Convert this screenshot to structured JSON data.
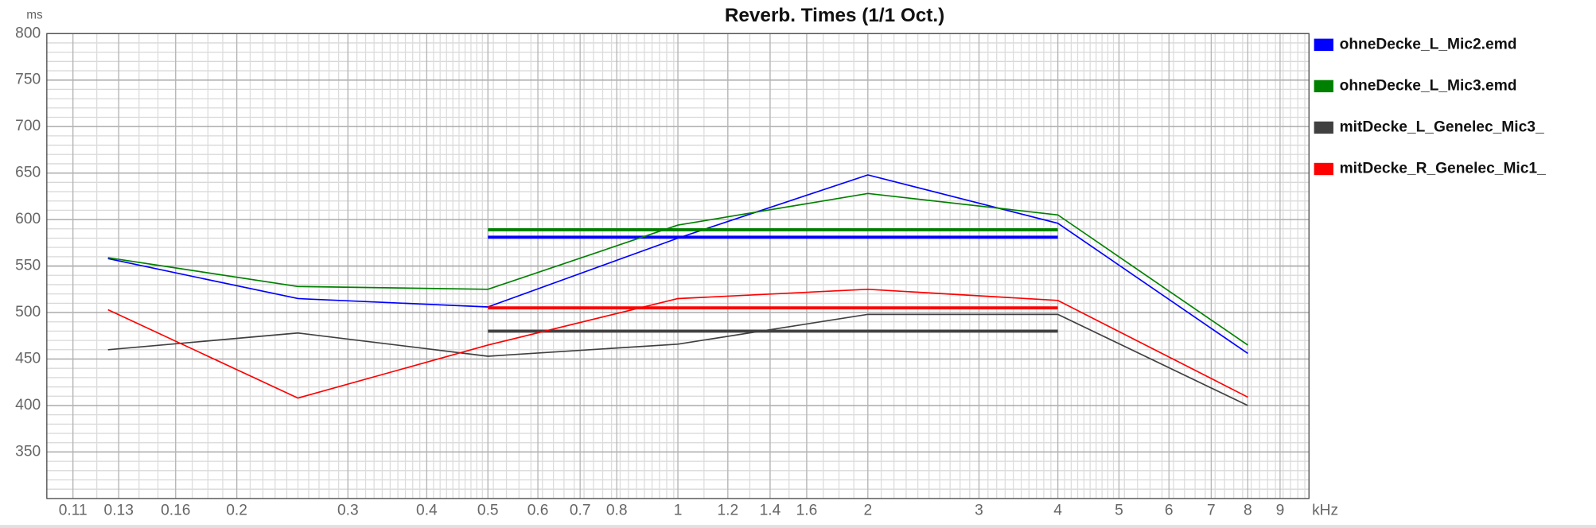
{
  "chart_data": {
    "type": "line",
    "title": "Reverb. Times (1/1 Oct.)",
    "y_unit": "ms",
    "x_unit": "kHz",
    "log_x": true,
    "grid": true,
    "xlim": [
      0.1,
      10
    ],
    "ylim": [
      300,
      800
    ],
    "xticks": [
      0.11,
      0.13,
      0.16,
      0.2,
      0.3,
      0.4,
      0.5,
      0.6,
      0.7,
      0.8,
      1,
      1.2,
      1.4,
      1.6,
      2,
      3,
      4,
      5,
      6,
      7,
      8,
      9
    ],
    "yticks": [
      350,
      400,
      450,
      500,
      550,
      600,
      650,
      700,
      750,
      800
    ],
    "x": [
      0.125,
      0.25,
      0.5,
      1,
      2,
      4,
      8
    ],
    "mean_x": [
      0.5,
      4
    ],
    "series": [
      {
        "name": "ohneDecke_L_Mic2.emd",
        "color": "#0000ff",
        "values": [
          558,
          515,
          506,
          580,
          648,
          596,
          456
        ],
        "mean": 581
      },
      {
        "name": "ohneDecke_L_Mic3.emd",
        "color": "#008000",
        "values": [
          559,
          528,
          525,
          594,
          628,
          605,
          465
        ],
        "mean": 589
      },
      {
        "name": "mitDecke_L_Genelec_Mic3_",
        "color": "#404040",
        "values": [
          460,
          478,
          453,
          466,
          498,
          498,
          400
        ],
        "mean": 480
      },
      {
        "name": "mitDecke_R_Genelec_Mic1_",
        "color": "#ff0000",
        "values": [
          503,
          408,
          465,
          515,
          525,
          513,
          409
        ],
        "mean": 505
      }
    ]
  }
}
